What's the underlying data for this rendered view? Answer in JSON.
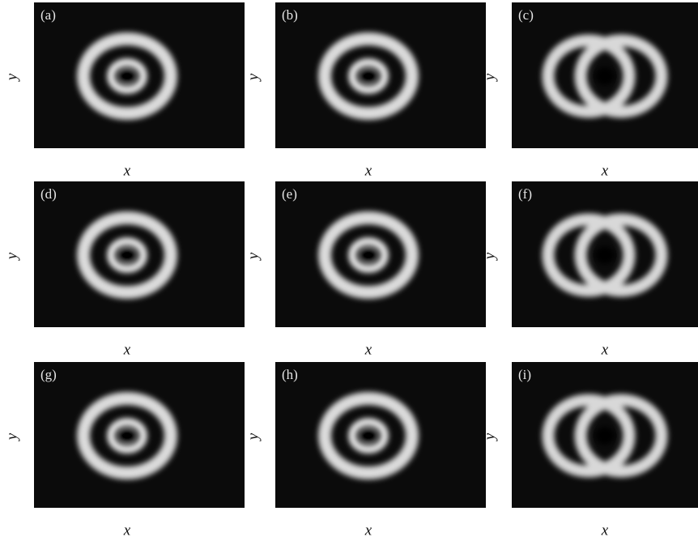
{
  "panels": [
    {
      "label": "(a)",
      "x_label": "x",
      "y_label": "y"
    },
    {
      "label": "(b)",
      "x_label": "x",
      "y_label": "y"
    },
    {
      "label": "(c)",
      "x_label": "x",
      "y_label": "y"
    },
    {
      "label": "(d)",
      "x_label": "x",
      "y_label": "y"
    },
    {
      "label": "(e)",
      "x_label": "x",
      "y_label": "y"
    },
    {
      "label": "(f)",
      "x_label": "x",
      "y_label": "y"
    },
    {
      "label": "(g)",
      "x_label": "x",
      "y_label": "y"
    },
    {
      "label": "(h)",
      "x_label": "x",
      "y_label": "y"
    },
    {
      "label": "(i)",
      "x_label": "x",
      "y_label": "y"
    }
  ]
}
